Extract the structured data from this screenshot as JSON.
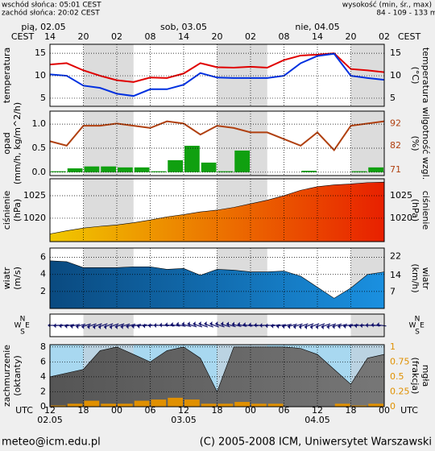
{
  "header": {
    "sunrise": "wschód słońca: 05:01 CEST",
    "sunset": "zachód słońca: 20:02 CEST",
    "elevation_title": "wysokość (min, śr., max)",
    "elevation": "84 - 109 - 133 m"
  },
  "time_axis": {
    "cest_title": "CEST",
    "cest_hours": [
      "14",
      "20",
      "02",
      "08",
      "14",
      "20",
      "02",
      "08",
      "14",
      "20",
      "02"
    ],
    "days_top": [
      "pią, 02.05",
      "sob, 03.05",
      "nie, 04.05"
    ],
    "utc_title": "UTC",
    "utc_hours": [
      "12",
      "18",
      "00",
      "06",
      "12",
      "18",
      "00",
      "06",
      "12",
      "18",
      "00"
    ],
    "days_bottom": [
      "02.05",
      "03.05",
      "04.05"
    ]
  },
  "wind_direction": {
    "labels": [
      "N",
      "W",
      "E",
      "S"
    ]
  },
  "chart_data": [
    {
      "type": "line",
      "left_labels": [
        "temperatura"
      ],
      "right_labels": [
        "(°C)",
        "temperatura"
      ],
      "ylim": [
        3.2,
        17
      ],
      "yticks": [
        5,
        10,
        15
      ],
      "grid": true,
      "series": [
        {
          "kind": "line",
          "color": "#e00000",
          "values": [
            12.5,
            12.8,
            11.2,
            10,
            9,
            8.6,
            9.6,
            9.5,
            10.5,
            12.8,
            11.9,
            11.8,
            12,
            11.8,
            13.5,
            14.5,
            14.7,
            15,
            11.5,
            11.2,
            10.8
          ]
        },
        {
          "kind": "line",
          "color": "#0030e0",
          "values": [
            10.3,
            10,
            7.8,
            7.3,
            6,
            5.5,
            7,
            7,
            8,
            10.6,
            9.6,
            9.5,
            9.5,
            9.5,
            10,
            12.8,
            14.4,
            14.9,
            10,
            9.5,
            9.1
          ]
        }
      ]
    },
    {
      "type": "bar",
      "left_labels": [
        "opad",
        "(mm/h, kg/m^2/h)"
      ],
      "right_labels": [
        "(%)",
        "wilgotność wzgl."
      ],
      "ylim": [
        -0.07,
        1.27
      ],
      "yticks": [
        {
          "value": 0,
          "label": "0.0"
        },
        {
          "value": 0.5,
          "label": "0.5"
        },
        {
          "value": 1,
          "label": "1.0"
        }
      ],
      "y2lim": [
        68.5,
        97.6
      ],
      "y2ticks": [
        71,
        82,
        92
      ],
      "y2_color": "#b04010",
      "grid": true,
      "series": [
        {
          "kind": "bar",
          "color": "#10a010",
          "values": [
            0.02,
            0.08,
            0.12,
            0.12,
            0.1,
            0.1,
            0.02,
            0.25,
            0.55,
            0.2,
            0.02,
            0.45,
            0,
            0,
            0,
            0.03,
            0,
            0,
            0.02,
            0.1
          ]
        },
        {
          "kind": "line",
          "axis": "y2",
          "color": "#b04010",
          "values": [
            84,
            82,
            91,
            91,
            92,
            91,
            90,
            93,
            92,
            87,
            91,
            90,
            88,
            88,
            85,
            82,
            88,
            80,
            91,
            92,
            93
          ]
        }
      ]
    },
    {
      "type": "area",
      "left_labels": [
        "ciśnienie",
        "(hPa)"
      ],
      "right_labels": [
        "(hPa)",
        "ciśnienie"
      ],
      "ylim": [
        1014.8,
        1028.75
      ],
      "yticks": [
        1020,
        1025
      ],
      "grid": true,
      "series": [
        {
          "kind": "area",
          "colors": [
            "#f0c800",
            "#e82000"
          ],
          "values": [
            1016.5,
            1017.2,
            1017.8,
            1018.2,
            1018.5,
            1019,
            1019.6,
            1020.3,
            1020.8,
            1021.4,
            1021.8,
            1022.4,
            1023.2,
            1024,
            1025,
            1026.2,
            1027,
            1027.4,
            1027.6,
            1027.9,
            1028
          ]
        }
      ]
    },
    {
      "type": "area",
      "left_labels": [
        "wiatr",
        "(m/s)"
      ],
      "right_labels": [
        "(km/h)",
        "wiatr"
      ],
      "ylim": [
        0,
        7.1
      ],
      "yticks": [
        2,
        4,
        6
      ],
      "y2lim": [
        0,
        25.6
      ],
      "y2ticks": [
        7,
        14,
        22
      ],
      "grid": true,
      "series": [
        {
          "kind": "area",
          "colors": [
            "#0a4a80",
            "#1a90e0"
          ],
          "values": [
            5.6,
            5.5,
            4.8,
            4.8,
            4.8,
            4.9,
            4.9,
            4.6,
            4.7,
            3.9,
            4.6,
            4.5,
            4.3,
            4.3,
            4.4,
            3.8,
            2.5,
            1.2,
            2.4,
            4,
            4.3
          ]
        }
      ]
    },
    {
      "type": "area",
      "left_labels": [
        "zachmurzenie",
        "(oktanty)"
      ],
      "right_labels": [
        "(frakcja)",
        "mgła"
      ],
      "ylim": [
        0,
        8.3
      ],
      "yticks": [
        0,
        2,
        4,
        6,
        8
      ],
      "y2lim": [
        0,
        1.04
      ],
      "y2ticks": [
        0,
        0.25,
        0.5,
        0.75,
        1
      ],
      "y2_color": "#e09000",
      "background": "#a8d8f0",
      "grid": true,
      "series": [
        {
          "kind": "area",
          "colors": [
            "#555555",
            "#777777"
          ],
          "values": [
            4,
            4.5,
            5,
            7.5,
            8,
            7,
            6,
            7.5,
            8,
            6.5,
            2,
            8,
            8,
            8,
            8,
            7.8,
            7,
            5,
            3,
            6.5,
            7
          ]
        },
        {
          "kind": "bar",
          "axis": "y2",
          "color": "#e09000",
          "values": [
            0.02,
            0.05,
            0.1,
            0.05,
            0.05,
            0.1,
            0.12,
            0.15,
            0.12,
            0.05,
            0.05,
            0.08,
            0.05,
            0.05,
            0,
            0,
            0,
            0.05,
            0.02,
            0.05
          ]
        }
      ]
    }
  ],
  "footer": {
    "email": "meteo@icm.edu.pl",
    "copyright": "(C) 2005-2008 ICM, Uniwersytet Warszawski"
  }
}
